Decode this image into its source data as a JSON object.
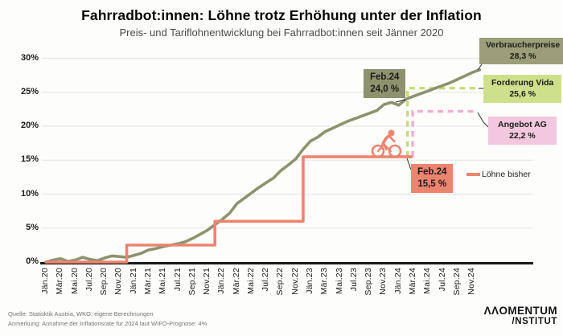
{
  "header": {
    "title": "Fahrradbot:innen: Löhne trotz Erhöhung unter der Inflation",
    "subtitle": "Preis- und Tariflohnentwicklung bei Fahrradbot:innen seit Jänner 2020"
  },
  "chart_data": {
    "type": "line",
    "title": "Fahrradbot:innen: Löhne trotz Erhöhung unter der Inflation",
    "subtitle": "Preis- und Tariflohnentwicklung bei Fahrradbot:innen seit Jänner 2020",
    "xlabel": "",
    "ylabel": "",
    "ylim": [
      0,
      30
    ],
    "grid": true,
    "ytick_labels": [
      "0%",
      "5%",
      "10%",
      "15%",
      "20%",
      "25%",
      "30%"
    ],
    "x_tick_labels": [
      "Jän.20",
      "Mär.20",
      "Mai.20",
      "Jul.20",
      "Sep.20",
      "Nov.20",
      "Jän.21",
      "Mär.21",
      "Mai.21",
      "Jul.21",
      "Sep.21",
      "Nov.21",
      "Jän.22",
      "Mär.22",
      "Mai.22",
      "Jul.22",
      "Sep.22",
      "Nov.22",
      "Jän.23",
      "Mär.23",
      "Mai.23",
      "Jul.23",
      "Sep.23",
      "Nov.23",
      "Jän.24",
      "Mär.24",
      "Mai.24",
      "Jul.24",
      "Sep.24",
      "Nov.24"
    ],
    "x_start": "Jän.20",
    "x_end": "Dez.24",
    "series": [
      {
        "name": "Verbraucherpreise",
        "style": "solid",
        "color": "#8E926E",
        "key_points": [
          {
            "month": "Feb.24",
            "value": 24.0
          },
          {
            "month": "Dez.24",
            "value": 28.3
          }
        ],
        "monthly_values": [
          0.0,
          0.3,
          0.5,
          0.1,
          0.3,
          0.7,
          0.4,
          0.2,
          0.6,
          0.9,
          0.8,
          0.7,
          1.0,
          1.3,
          1.8,
          2.0,
          2.3,
          2.5,
          2.7,
          3.0,
          3.5,
          4.1,
          4.7,
          5.5,
          6.3,
          7.2,
          8.6,
          9.4,
          10.2,
          11.0,
          11.7,
          12.4,
          13.5,
          14.3,
          15.2,
          16.6,
          17.8,
          18.4,
          19.2,
          19.7,
          20.2,
          20.7,
          21.1,
          21.5,
          21.9,
          22.3,
          23.2,
          23.5,
          23.1,
          24.0,
          24.4,
          24.8,
          25.2,
          25.6,
          26.0,
          26.4,
          26.9,
          27.4,
          27.9,
          28.3
        ]
      },
      {
        "name": "Löhne bisher",
        "style": "step",
        "color": "#ED8470",
        "steps": [
          {
            "from_month": "Jän.20",
            "index": 0,
            "value": 0.0
          },
          {
            "from_month": "Dez.20",
            "index": 11,
            "value": 2.5
          },
          {
            "from_month": "Dez.21",
            "index": 23,
            "value": 6.0
          },
          {
            "from_month": "Dez.22",
            "index": 35,
            "value": 15.5
          }
        ],
        "end_index": 49.9,
        "end_point": {
          "month": "Feb.24",
          "value": 15.5
        }
      },
      {
        "name": "Forderung Vida",
        "style": "dashed",
        "color": "#C6DD7A",
        "value": 25.6,
        "rises_from": 15.5,
        "start_index": 49.2,
        "end_index": 58.7
      },
      {
        "name": "Angebot AG",
        "style": "dashed",
        "color": "#F0AED2",
        "value": 22.2,
        "rises_from": 15.5,
        "start_index": 49.9,
        "end_index": 58.7
      }
    ],
    "annotations": [
      {
        "id": "feb24_prices",
        "line1": "Feb.24",
        "line2": "24,0 %"
      },
      {
        "id": "feb24_wages",
        "line1": "Feb.24",
        "line2": "15,5 %"
      },
      {
        "id": "verbraucherpreise",
        "line1": "Verbraucherpreise",
        "line2": "28,3 %"
      },
      {
        "id": "forderung_vida",
        "line1": "Forderung Vida",
        "line2": "25,6 %"
      },
      {
        "id": "angebot_ag",
        "line1": "Angebot AG",
        "line2": "22,2 %"
      }
    ],
    "legend": {
      "label": "Löhne bisher",
      "color": "#ED8470",
      "position": "right"
    },
    "colors": {
      "prices_line": "#8E926E",
      "wages_line": "#ED8470",
      "vida_dash": "#C6DD7A",
      "ag_dash": "#F0AED2",
      "vida_box": "#CFE08C",
      "ag_box": "#F3C7DE",
      "grid": "#E8E8E3",
      "axis": "#1A1A1A"
    }
  },
  "footer": {
    "source_line1": "Quelle: Statisktik Austria, WKO, eigene Berechnungen",
    "source_line2": "Anmerkung: Annahme der Inflationsrate für 2024 laut WIFO-Prognose: 4%",
    "logo_line1": "ΛΛOMENTUM",
    "logo_line2": "/NSTITUT"
  }
}
